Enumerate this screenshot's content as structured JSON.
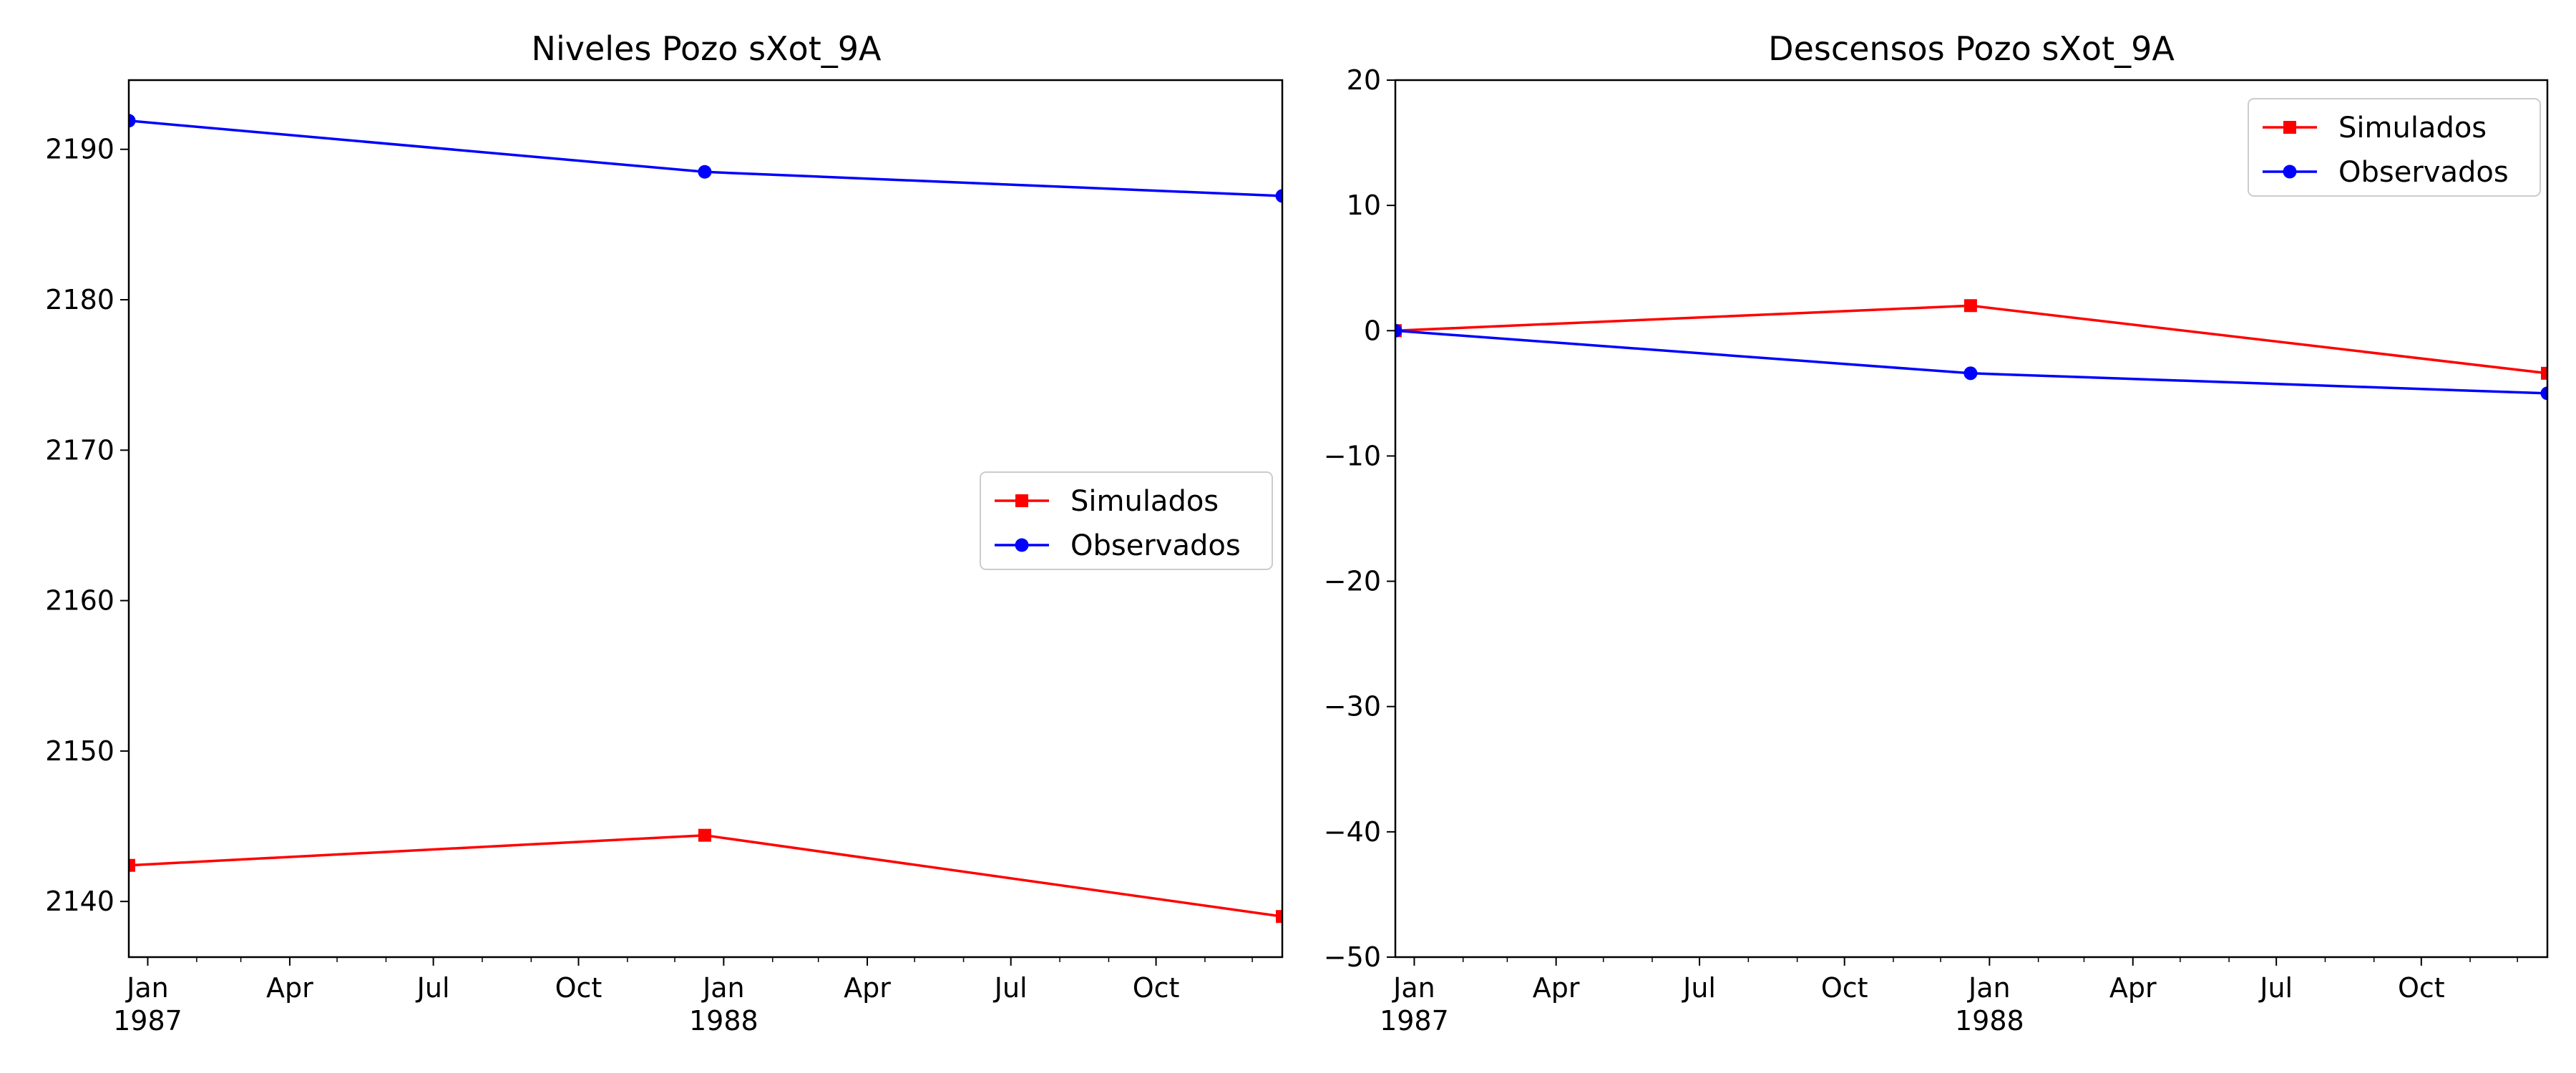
{
  "chart_data": [
    {
      "type": "line",
      "title": "Niveles Pozo sXot_9A",
      "xlabel": "",
      "ylabel": "",
      "xlim": [
        "1986-12-20",
        "1988-12-20"
      ],
      "ylim": [
        2136.3,
        2194.6
      ],
      "y_ticks": [
        2140,
        2150,
        2160,
        2170,
        2180,
        2190
      ],
      "x_ticks": [
        {
          "date": "1987-01-01",
          "label": "Jan",
          "sublabel": "1987"
        },
        {
          "date": "1987-04-01",
          "label": "Apr",
          "sublabel": ""
        },
        {
          "date": "1987-07-01",
          "label": "Jul",
          "sublabel": ""
        },
        {
          "date": "1987-10-01",
          "label": "Oct",
          "sublabel": ""
        },
        {
          "date": "1988-01-01",
          "label": "Jan",
          "sublabel": "1988"
        },
        {
          "date": "1988-04-01",
          "label": "Apr",
          "sublabel": ""
        },
        {
          "date": "1988-07-01",
          "label": "Jul",
          "sublabel": ""
        },
        {
          "date": "1988-10-01",
          "label": "Oct",
          "sublabel": ""
        }
      ],
      "grid": false,
      "legend_position": "center-right",
      "series": [
        {
          "name": "Simulados",
          "color": "#ff0000",
          "marker": "square",
          "x": [
            "1986-12-20",
            "1987-12-20",
            "1988-12-20"
          ],
          "y": [
            2142.4,
            2144.4,
            2139.0
          ]
        },
        {
          "name": "Observados",
          "color": "#0000ff",
          "marker": "circle",
          "x": [
            "1986-12-20",
            "1987-12-20",
            "1988-12-20"
          ],
          "y": [
            2191.9,
            2188.5,
            2186.9
          ]
        }
      ]
    },
    {
      "type": "line",
      "title": "Descensos Pozo sXot_9A",
      "xlabel": "",
      "ylabel": "",
      "xlim": [
        "1986-12-20",
        "1988-12-20"
      ],
      "ylim": [
        -50,
        20
      ],
      "y_ticks": [
        -50,
        -40,
        -30,
        -20,
        -10,
        0,
        10,
        20
      ],
      "x_ticks": [
        {
          "date": "1987-01-01",
          "label": "Jan",
          "sublabel": "1987"
        },
        {
          "date": "1987-04-01",
          "label": "Apr",
          "sublabel": ""
        },
        {
          "date": "1987-07-01",
          "label": "Jul",
          "sublabel": ""
        },
        {
          "date": "1987-10-01",
          "label": "Oct",
          "sublabel": ""
        },
        {
          "date": "1988-01-01",
          "label": "Jan",
          "sublabel": "1988"
        },
        {
          "date": "1988-04-01",
          "label": "Apr",
          "sublabel": ""
        },
        {
          "date": "1988-07-01",
          "label": "Jul",
          "sublabel": ""
        },
        {
          "date": "1988-10-01",
          "label": "Oct",
          "sublabel": ""
        }
      ],
      "grid": false,
      "legend_position": "top-right",
      "series": [
        {
          "name": "Simulados",
          "color": "#ff0000",
          "marker": "square",
          "x": [
            "1986-12-20",
            "1987-12-20",
            "1988-12-20"
          ],
          "y": [
            0,
            2.0,
            -3.4
          ]
        },
        {
          "name": "Observados",
          "color": "#0000ff",
          "marker": "circle",
          "x": [
            "1986-12-20",
            "1987-12-20",
            "1988-12-20"
          ],
          "y": [
            0,
            -3.4,
            -5.0
          ]
        }
      ]
    }
  ]
}
